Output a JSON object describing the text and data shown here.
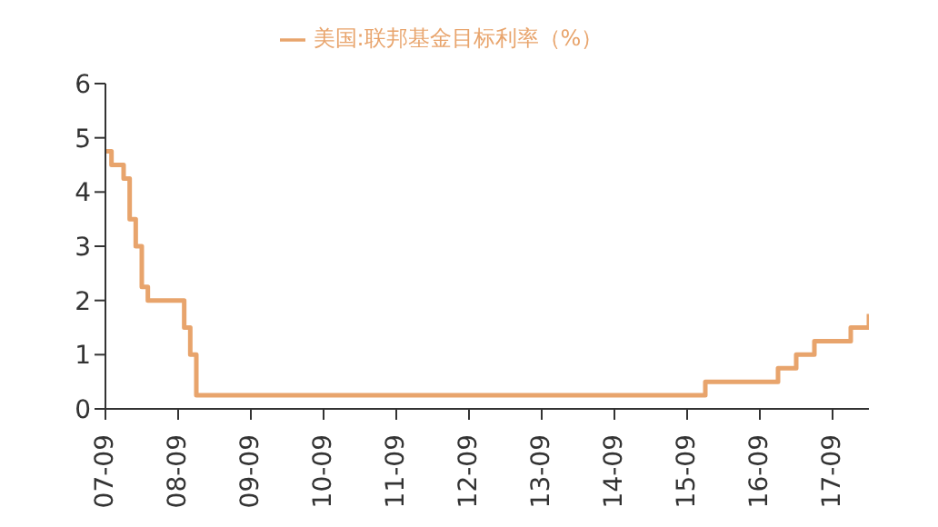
{
  "chart_data": {
    "type": "step",
    "legend": "top",
    "grid": false,
    "marker": "none",
    "line_style": "solid",
    "x": [
      "2007-09",
      "2007-10",
      "2007-12",
      "2008-01",
      "2008-02",
      "2008-03",
      "2008-04",
      "2008-10",
      "2008-11",
      "2008-12",
      "2015-12",
      "2016-12",
      "2017-03",
      "2017-06",
      "2017-12",
      "2018-03"
    ],
    "series": [
      {
        "name": "美国:联邦基金目标利率（%）",
        "color": "#e8a46c",
        "values": [
          4.75,
          4.5,
          4.25,
          3.5,
          3.0,
          2.25,
          2.0,
          1.5,
          1.0,
          0.25,
          0.5,
          0.75,
          1.0,
          1.25,
          1.5,
          1.75
        ]
      }
    ],
    "xlim": [
      "2007-09",
      "2018-03"
    ],
    "xticks": [
      {
        "value": "2007-09",
        "label": "07-09"
      },
      {
        "value": "2008-09",
        "label": "08-09"
      },
      {
        "value": "2009-09",
        "label": "09-09"
      },
      {
        "value": "2010-09",
        "label": "10-09"
      },
      {
        "value": "2011-09",
        "label": "11-09"
      },
      {
        "value": "2012-09",
        "label": "12-09"
      },
      {
        "value": "2013-09",
        "label": "13-09"
      },
      {
        "value": "2014-09",
        "label": "14-09"
      },
      {
        "value": "2015-09",
        "label": "15-09"
      },
      {
        "value": "2016-09",
        "label": "16-09"
      },
      {
        "value": "2017-09",
        "label": "17-09"
      }
    ],
    "ylim": [
      0,
      6
    ],
    "yticks": [
      0,
      1,
      2,
      3,
      4,
      5,
      6
    ]
  }
}
